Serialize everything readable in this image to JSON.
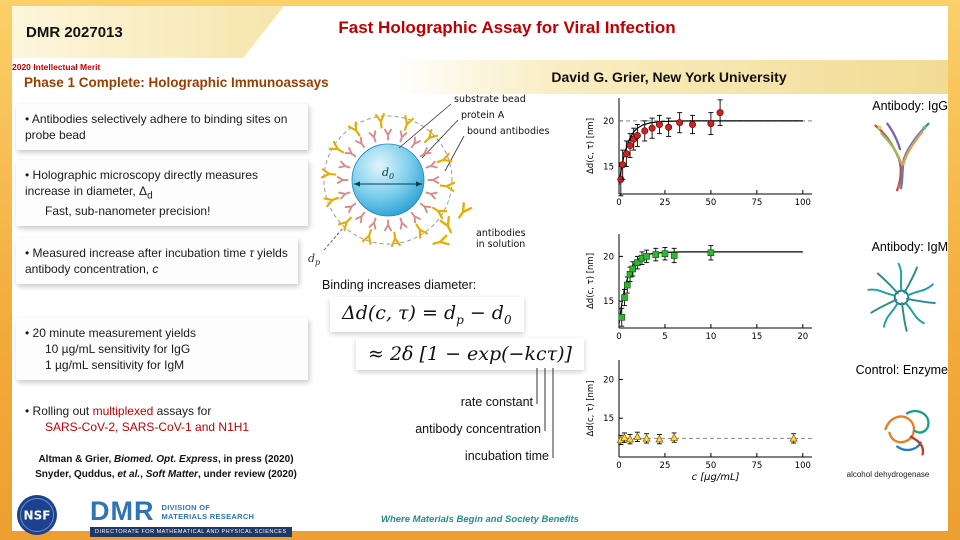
{
  "colors": {
    "title_red": "#c00000",
    "subtitle_brown": "#9c3d00",
    "border_gold": "#f3ab3c",
    "tagline_teal": "#1f8f8f",
    "dmr_blue": "#2e75b6",
    "navy_bar": "#1f3864",
    "igg_marker": "#cc2222",
    "igm_marker": "#2db82d",
    "enzyme_marker": "#ffd34d"
  },
  "header": {
    "award": "DMR 2027013",
    "title": "Fast Holographic Assay for Viral Infection",
    "merit": "2020 Intellectual Merit",
    "subtitle": "Phase 1 Complete: Holographic Immunoassays",
    "pi": "David G. Grier, New York University"
  },
  "bullets": {
    "b1": "Antibodies selectively adhere to binding sites on probe bead",
    "b2_a": "Holographic microscopy directly measures increase in diameter, Δ",
    "b2_sub": "d",
    "b2_b": "Fast, sub-nanometer precision!",
    "b3_a": "Measured increase after incubation time ",
    "b3_tau": "τ",
    "b3_b": " yields antibody concentration, ",
    "b3_c": "c",
    "b4_l1": "20 minute measurement yields",
    "b4_l2": "10 µg/mL sensitivity for IgG",
    "b4_l3": "1 µg/mL sensitivity for IgM",
    "b5_a": "Rolling out ",
    "b5_red1": "multiplexed",
    "b5_b": " assays for",
    "b5_red2": "SARS-CoV-2, SARS-CoV-1 and N1H1"
  },
  "citations": {
    "c1_a": "Altman & Grier, ",
    "c1_i": "Biomed. Opt. Express",
    "c1_b": ", in press (2020)",
    "c2_a": "Snyder, Quddus, ",
    "c2_i1": "et al.",
    "c2_b": ", ",
    "c2_i2": "Soft Matter",
    "c2_c": ", under review (2020)"
  },
  "diagram": {
    "substrate": "substrate bead",
    "protein": "protein A",
    "bound": "bound antibodies",
    "solution_l1": "antibodies",
    "solution_l2": "in solution",
    "d0_base": "d",
    "d0_sub": "0",
    "dp_base": "d",
    "dp_sub": "p",
    "caption": "Binding increases diameter:"
  },
  "equation": {
    "l1_a": "Δd(c, τ) = d",
    "l1_sub1": "p",
    "l1_b": " − d",
    "l1_sub2": "0",
    "l2": "≈ 2δ [1 − exp(−kcτ)]",
    "rate": "rate constant",
    "conc": "antibody concentration",
    "time": "incubation time"
  },
  "chart_data": [
    {
      "type": "scatter",
      "title": "Antibody: IgG",
      "ylabel": "Δd(c, τ)  [nm]",
      "xlabel": "",
      "x": [
        1,
        2,
        4,
        6,
        8,
        10,
        14,
        18,
        22,
        27,
        33,
        40,
        50,
        55
      ],
      "y": [
        13.6,
        15.2,
        16.4,
        17.3,
        18.0,
        18.4,
        18.9,
        19.2,
        19.6,
        19.3,
        19.8,
        19.6,
        19.7,
        20.9
      ],
      "yerr": [
        1.8,
        1.6,
        1.4,
        1.3,
        1.2,
        1.2,
        1.1,
        1.1,
        1.0,
        1.0,
        1.1,
        1.0,
        1.2,
        1.4
      ],
      "marker": "circle",
      "color": "#cc2222",
      "edge": "#5a0000",
      "xlim": [
        0,
        105
      ],
      "ylim": [
        12,
        22.5
      ],
      "xticks": [
        0,
        25,
        50,
        75,
        100
      ],
      "yticks": [
        15,
        20
      ],
      "dash_y": 20,
      "fit_x": [
        0,
        1,
        2,
        3,
        4,
        5,
        6,
        8,
        10,
        13,
        17,
        22,
        30,
        40,
        55,
        75,
        100
      ],
      "fit_y": [
        13.0,
        14.4,
        15.5,
        16.4,
        17.1,
        17.7,
        18.1,
        18.8,
        19.2,
        19.56,
        19.78,
        19.91,
        19.97,
        19.99,
        20.0,
        20.0,
        20.0
      ]
    },
    {
      "type": "scatter",
      "title": "Antibody: IgM",
      "ylabel": "Δd(c, τ)  [nm]",
      "xlabel": "",
      "x": [
        0.3,
        0.6,
        0.9,
        1.2,
        1.5,
        2,
        2.5,
        3,
        4,
        5,
        6,
        10
      ],
      "y": [
        13.2,
        15.4,
        16.8,
        18.0,
        18.6,
        19.3,
        19.8,
        20.0,
        20.2,
        20.3,
        20.1,
        20.4
      ],
      "yerr": [
        1.0,
        0.9,
        0.9,
        0.8,
        0.8,
        0.7,
        0.7,
        0.7,
        0.7,
        0.7,
        0.8,
        0.8
      ],
      "marker": "square",
      "color": "#2db82d",
      "edge": "#0a4d0a",
      "xlim": [
        0,
        21
      ],
      "ylim": [
        12,
        22.5
      ],
      "xticks": [
        0,
        5,
        10,
        15,
        20
      ],
      "yticks": [
        15,
        20
      ],
      "dash_y": null,
      "fit_x": [
        0,
        0.3,
        0.6,
        1,
        1.5,
        2,
        2.5,
        3,
        4,
        5,
        7,
        10,
        15,
        20
      ],
      "fit_y": [
        12.5,
        14.7,
        16.4,
        17.8,
        19.0,
        19.6,
        20.0,
        20.2,
        20.37,
        20.45,
        20.5,
        20.5,
        20.5,
        20.5
      ]
    },
    {
      "type": "scatter",
      "title": "Control: Enzyme",
      "annotation": "alcohol dehydrogenase",
      "ylabel": "Δd(c, τ)  [nm]",
      "xlabel": "c [µg/mL]",
      "x": [
        1,
        3,
        6,
        10,
        15,
        22,
        30,
        95
      ],
      "y": [
        12.2,
        12.5,
        12.3,
        12.6,
        12.4,
        12.3,
        12.5,
        12.4
      ],
      "yerr": 0.6,
      "marker": "triangle",
      "color": "#ffd34d",
      "edge": "#8a6d00",
      "xlim": [
        0,
        105
      ],
      "ylim": [
        10,
        22.5
      ],
      "xticks": [
        0,
        25,
        50,
        75,
        100
      ],
      "yticks": [
        15,
        20
      ],
      "dash_y": 12.4,
      "fit_x": null,
      "fit_y": null
    }
  ],
  "footer": {
    "nsf": "NSF",
    "dmr": "DMR",
    "division_l1": "DIVISION OF",
    "division_l2": "MATERIALS RESEARCH",
    "directorate": "DIRECTORATE FOR MATHEMATICAL AND PHYSICAL SCIENCES",
    "tagline": "Where Materials Begin and Society Benefits"
  }
}
